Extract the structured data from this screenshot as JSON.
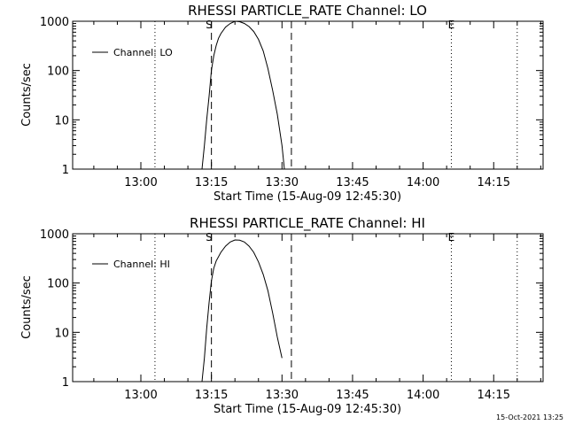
{
  "chart_data": [
    {
      "type": "line",
      "title": "RHESSI PARTICLE_RATE Channel: LO",
      "xlabel": "Start Time (15-Aug-09 12:45:30)",
      "ylabel": "Counts/sec",
      "yscale": "log",
      "ylim": [
        1,
        1000
      ],
      "y_ticks": [
        1,
        10,
        100,
        1000
      ],
      "y_tick_labels": [
        "1",
        "10",
        "100",
        "1000"
      ],
      "x_ticks": [
        "13:00",
        "13:15",
        "13:30",
        "13:45",
        "14:00",
        "14:15"
      ],
      "x_range": [
        "12:45:30",
        "14:25:30"
      ],
      "legend": {
        "position": "top-left",
        "entries": [
          "Channel: LO"
        ]
      },
      "grid": false,
      "markers": [
        {
          "label": "S",
          "time": "13:14:30"
        },
        {
          "label": "E",
          "time": "14:06:00"
        }
      ],
      "series": [
        {
          "name": "Channel: LO",
          "x": [
            "13:13:00",
            "13:13:30",
            "13:14:00",
            "13:14:30",
            "13:15:00",
            "13:15:30",
            "13:16:00",
            "13:16:30",
            "13:17:00",
            "13:18:00",
            "13:19:00",
            "13:20:00",
            "13:21:00",
            "13:22:00",
            "13:23:00",
            "13:24:00",
            "13:25:00",
            "13:26:00",
            "13:27:00",
            "13:28:00",
            "13:29:00",
            "13:30:00",
            "13:30:30"
          ],
          "y": [
            1,
            3,
            10,
            30,
            100,
            200,
            320,
            450,
            560,
            760,
            900,
            1000,
            980,
            900,
            780,
            620,
            430,
            250,
            110,
            40,
            13,
            3,
            1
          ]
        }
      ]
    },
    {
      "type": "line",
      "title": "RHESSI PARTICLE_RATE Channel: HI",
      "xlabel": "Start Time (15-Aug-09 12:45:30)",
      "ylabel": "Counts/sec",
      "yscale": "log",
      "ylim": [
        1,
        1000
      ],
      "y_ticks": [
        1,
        10,
        100,
        1000
      ],
      "y_tick_labels": [
        "1",
        "10",
        "100",
        "1000"
      ],
      "x_ticks": [
        "13:00",
        "13:15",
        "13:30",
        "13:45",
        "14:00",
        "14:15"
      ],
      "x_range": [
        "12:45:30",
        "14:25:30"
      ],
      "legend": {
        "position": "top-left",
        "entries": [
          "Channel: HI"
        ]
      },
      "grid": false,
      "markers": [
        {
          "label": "S",
          "time": "13:14:30"
        },
        {
          "label": "E",
          "time": "14:06:00"
        }
      ],
      "series": [
        {
          "name": "Channel: HI",
          "x": [
            "13:13:00",
            "13:13:30",
            "13:14:00",
            "13:14:30",
            "13:15:00",
            "13:15:30",
            "13:16:00",
            "13:17:00",
            "13:18:00",
            "13:19:00",
            "13:20:00",
            "13:21:00",
            "13:22:00",
            "13:23:00",
            "13:24:00",
            "13:25:00",
            "13:26:00",
            "13:27:00",
            "13:28:00",
            "13:29:00",
            "13:30:00"
          ],
          "y": [
            1,
            3,
            12,
            40,
            110,
            200,
            280,
            420,
            560,
            680,
            750,
            740,
            680,
            560,
            420,
            270,
            150,
            70,
            25,
            8,
            3
          ]
        }
      ]
    }
  ],
  "footer": {
    "timestamp": "15-Oct-2021 13:25"
  }
}
